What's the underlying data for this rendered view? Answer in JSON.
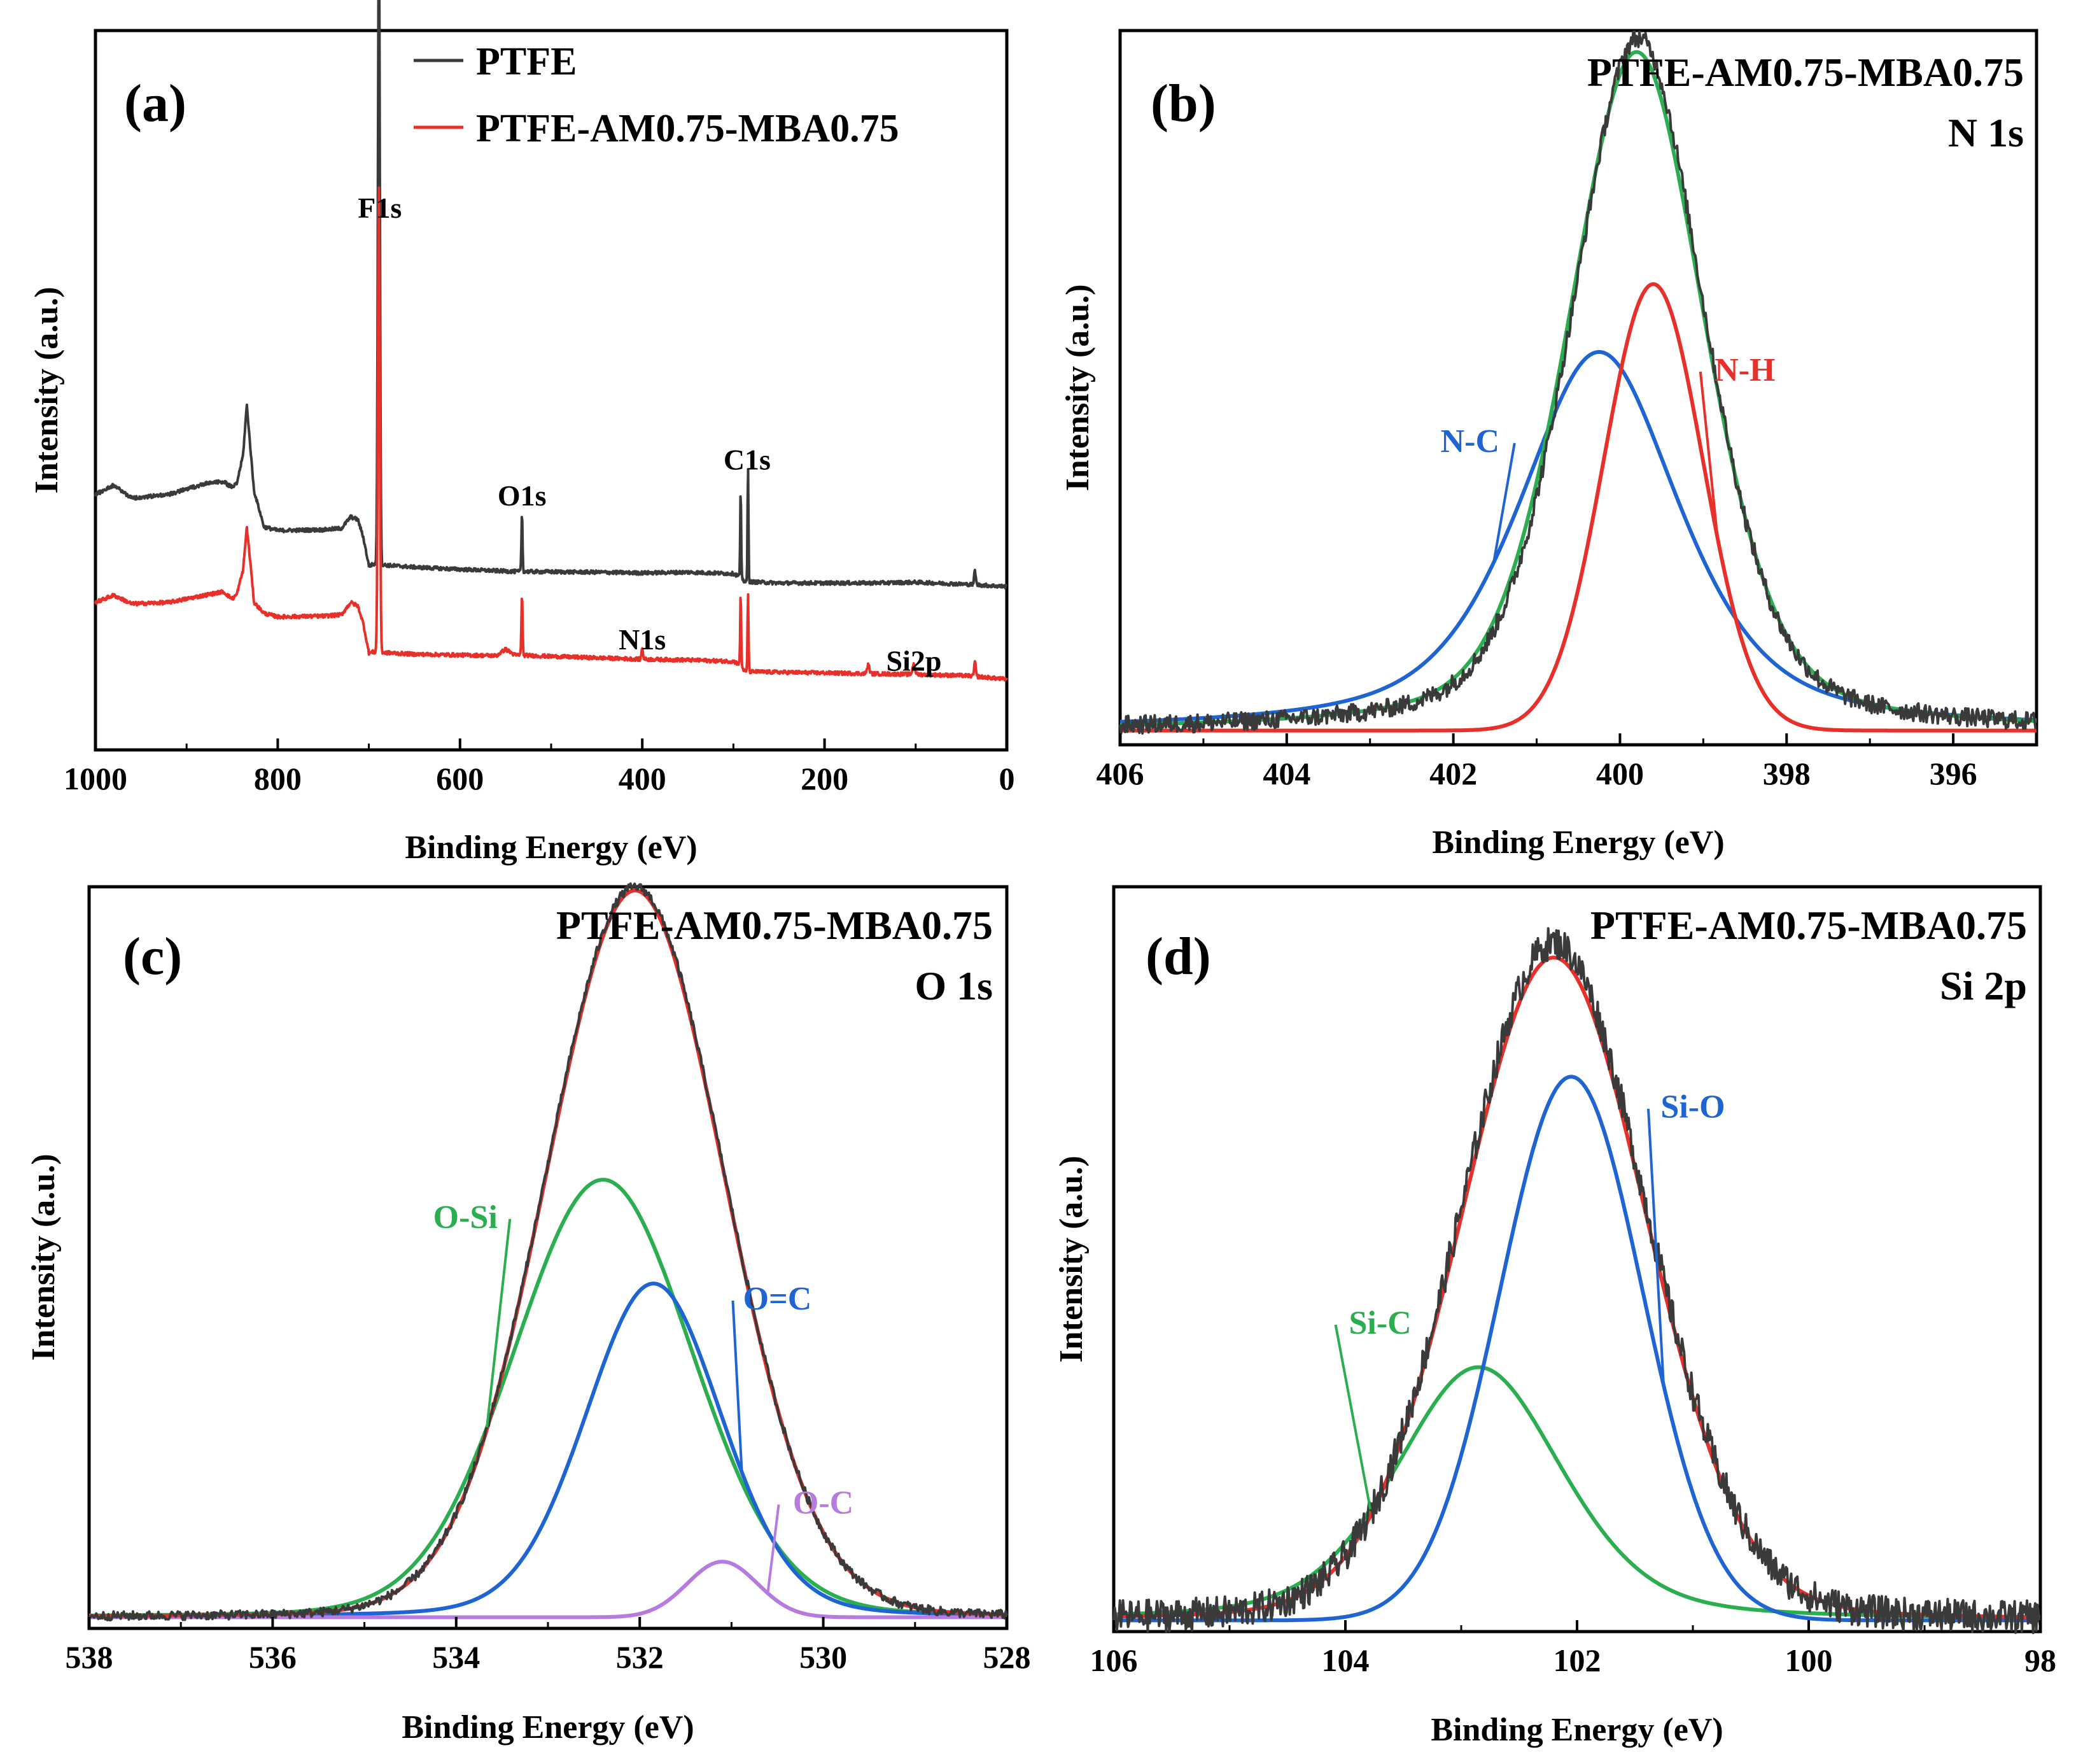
{
  "chart_data": [
    {
      "type": "line",
      "panel": "(a)",
      "title": "",
      "xlabel": "Binding Energy (eV)",
      "ylabel": "Intensity (a.u.)",
      "xlim": [
        1000,
        0
      ],
      "x_reversed": true,
      "xticks": [
        1000,
        800,
        600,
        400,
        200,
        0
      ],
      "ylim": [
        0,
        100
      ],
      "legend": [
        {
          "name": "PTFE",
          "color": "#3a3a3a"
        },
        {
          "name": "PTFE-AM0.75-MBA0.75",
          "color": "#e8302a"
        }
      ],
      "peak_labels": [
        {
          "text": "F1s",
          "x": 688,
          "y": 74
        },
        {
          "text": "O1s",
          "x": 532,
          "y": 34
        },
        {
          "text": "C1s",
          "x": 285,
          "y": 39
        },
        {
          "text": "N1s",
          "x": 400,
          "y": 14
        },
        {
          "text": "Si2p",
          "x": 102,
          "y": 11
        }
      ],
      "series": [
        {
          "name": "PTFE",
          "color": "#3a3a3a",
          "baseline": [
            [
              1000,
              35.5
            ],
            [
              980,
              36.8
            ],
            [
              960,
              35
            ],
            [
              920,
              35.5
            ],
            [
              880,
              37
            ],
            [
              860,
              37.3
            ],
            [
              850,
              36.5
            ],
            [
              845,
              37
            ],
            [
              838,
              41
            ],
            [
              834,
              48
            ],
            [
              830,
              42
            ],
            [
              826,
              36
            ],
            [
              815,
              31
            ],
            [
              800,
              30.5
            ],
            [
              750,
              30.6
            ],
            [
              730,
              30.8
            ],
            [
              720,
              32.4
            ],
            [
              712,
              32
            ],
            [
              706,
              29.5
            ],
            [
              700,
              25.6
            ],
            [
              695,
              25.8
            ],
            [
              650,
              25.4
            ],
            [
              600,
              25.1
            ],
            [
              540,
              24.8
            ],
            [
              450,
              24.7
            ],
            [
              400,
              24.6
            ],
            [
              350,
              24.7
            ],
            [
              300,
              24.5
            ],
            [
              291,
              24
            ],
            [
              288,
              23.4
            ],
            [
              250,
              23.2
            ],
            [
              150,
              23.2
            ],
            [
              100,
              23.3
            ],
            [
              40,
              23
            ],
            [
              0,
              22.7
            ]
          ],
          "peaks": [
            [
              689,
              91,
              2.5
            ],
            [
              532,
              8,
              1.5
            ],
            [
              292,
              12,
              1.2
            ],
            [
              284,
              16,
              1.2
            ],
            [
              35,
              2,
              2
            ]
          ]
        },
        {
          "name": "PTFE-AM0.75-MBA0.75",
          "color": "#e8302a",
          "baseline": [
            [
              1000,
              20.5
            ],
            [
              980,
              21.5
            ],
            [
              960,
              20.3
            ],
            [
              920,
              20.5
            ],
            [
              880,
              21.5
            ],
            [
              860,
              22
            ],
            [
              850,
              21
            ],
            [
              845,
              21.6
            ],
            [
              838,
              25
            ],
            [
              834,
              31
            ],
            [
              830,
              26
            ],
            [
              826,
              20.5
            ],
            [
              815,
              19
            ],
            [
              800,
              18.5
            ],
            [
              750,
              18.6
            ],
            [
              730,
              18.8
            ],
            [
              720,
              20.5
            ],
            [
              712,
              20
            ],
            [
              706,
              17.5
            ],
            [
              700,
              13.5
            ],
            [
              695,
              13.6
            ],
            [
              650,
              13.3
            ],
            [
              560,
              13.1
            ],
            [
              550,
              14
            ],
            [
              540,
              13.2
            ],
            [
              500,
              13
            ],
            [
              450,
              12.8
            ],
            [
              400,
              12.6
            ],
            [
              350,
              12.5
            ],
            [
              300,
              12.3
            ],
            [
              291,
              11.8
            ],
            [
              288,
              10.9
            ],
            [
              250,
              10.8
            ],
            [
              150,
              10.6
            ],
            [
              100,
              10.5
            ],
            [
              40,
              10.3
            ],
            [
              0,
              9.8
            ]
          ],
          "peaks": [
            [
              689,
              65,
              2.5
            ],
            [
              532,
              8.5,
              1.5
            ],
            [
              400,
              1.5,
              2
            ],
            [
              292,
              10,
              1.2
            ],
            [
              284,
              11,
              1.2
            ],
            [
              152,
              1.2,
              3
            ],
            [
              102,
              1.5,
              3
            ],
            [
              35,
              2,
              2
            ]
          ]
        }
      ]
    },
    {
      "type": "line",
      "panel": "(b)",
      "title": "PTFE-AM0.75-MBA0.75",
      "subtitle": "N 1s",
      "xlabel": "Binding Energy (eV)",
      "ylabel": "Intensity (a.u.)",
      "xlim": [
        406,
        395
      ],
      "x_reversed": true,
      "xticks": [
        406,
        404,
        402,
        400,
        398,
        396
      ],
      "ylim": [
        0,
        100
      ],
      "fit_baseline": 2.0,
      "component_labels": [
        {
          "text": "N-C",
          "color": "#1e64d2",
          "x": 401.8,
          "y": 41
        },
        {
          "text": "N-H",
          "color": "#e8302a",
          "x": 398.5,
          "y": 51
        }
      ],
      "components": [
        {
          "name": "N-C",
          "color": "#1e64d2",
          "center": 400.25,
          "height": 53,
          "fwhm": 2.3,
          "eta": 0.6
        },
        {
          "name": "N-H",
          "color": "#e8302a",
          "center": 399.6,
          "height": 62.5,
          "fwhm": 1.4,
          "eta": 0.0
        },
        {
          "name": "Envelope",
          "color": "#2bae4f",
          "center": 399.8,
          "height": 95,
          "fwhm": 1.95,
          "eta": 0.35
        },
        {
          "name": "Raw",
          "color": "#3a3a3a",
          "center": 399.78,
          "height": 97,
          "fwhm": 1.9,
          "eta": 0.35,
          "noise": 1.3
        }
      ]
    },
    {
      "type": "line",
      "panel": "(c)",
      "title": "PTFE-AM0.75-MBA0.75",
      "subtitle": "O 1s",
      "xlabel": "Binding Energy (eV)",
      "ylabel": "Intensity (a.u.)",
      "xlim": [
        538,
        528
      ],
      "x_reversed": true,
      "xticks": [
        538,
        536,
        534,
        532,
        530,
        528
      ],
      "ylim": [
        0,
        100
      ],
      "fit_baseline": 1.5,
      "component_labels": [
        {
          "text": "O-Si",
          "color": "#2bae4f",
          "x": 533.9,
          "y": 54
        },
        {
          "text": "O=C",
          "color": "#1e64d2",
          "x": 530.5,
          "y": 43
        },
        {
          "text": "O-C",
          "color": "#b57bde",
          "x": 530.0,
          "y": 15.5
        }
      ],
      "components": [
        {
          "name": "O-Si",
          "color": "#2bae4f",
          "center": 532.4,
          "height": 59,
          "fwhm": 2.3,
          "eta": 0.1
        },
        {
          "name": "O=C",
          "color": "#1e64d2",
          "center": 531.85,
          "height": 45,
          "fwhm": 1.75,
          "eta": 0.15
        },
        {
          "name": "O-C",
          "color": "#b57bde",
          "center": 531.1,
          "height": 7.5,
          "fwhm": 0.9,
          "eta": 0.0
        },
        {
          "name": "Envelope",
          "color": "#e8302a",
          "center": 532.05,
          "height": 98,
          "fwhm": 2.3,
          "eta": 0.05
        },
        {
          "name": "Raw",
          "color": "#3a3a3a",
          "center": 532.05,
          "height": 98.5,
          "fwhm": 2.3,
          "eta": 0.05,
          "noise": 0.6
        }
      ]
    },
    {
      "type": "line",
      "panel": "(d)",
      "title": "PTFE-AM0.75-MBA0.75",
      "subtitle": "Si 2p",
      "xlabel": "Binding Energy (eV)",
      "ylabel": "Intensity (a.u.)",
      "xlim": [
        106,
        98
      ],
      "x_reversed": true,
      "xticks": [
        106,
        104,
        102,
        100,
        98
      ],
      "ylim": [
        0,
        100
      ],
      "fit_baseline": 1.5,
      "component_labels": [
        {
          "text": "Si-C",
          "color": "#2bae4f",
          "x": 103.7,
          "y": 40
        },
        {
          "text": "Si-O",
          "color": "#1e64d2",
          "x": 101.0,
          "y": 69
        }
      ],
      "components": [
        {
          "name": "Si-C",
          "color": "#2bae4f",
          "center": 102.85,
          "height": 34,
          "fwhm": 1.7,
          "eta": 0.35
        },
        {
          "name": "Si-O",
          "color": "#1e64d2",
          "center": 102.05,
          "height": 73,
          "fwhm": 1.45,
          "eta": 0.0
        },
        {
          "name": "Envelope",
          "color": "#e8302a",
          "center": 102.2,
          "height": 89,
          "fwhm": 1.9,
          "eta": 0.1
        },
        {
          "name": "Raw",
          "color": "#3a3a3a",
          "center": 102.2,
          "height": 91,
          "fwhm": 1.9,
          "eta": 0.1,
          "noise": 2.2
        }
      ]
    }
  ]
}
